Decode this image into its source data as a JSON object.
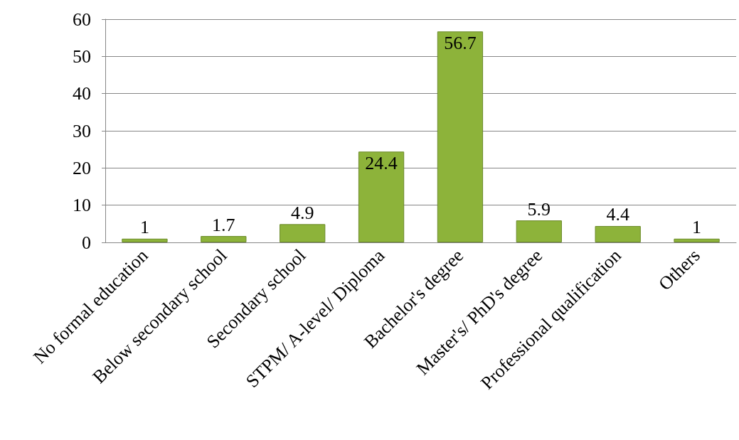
{
  "chart_data": {
    "type": "bar",
    "categories": [
      "No formal education",
      "Below secondary school",
      "Secondary school",
      "STPM/ A-level/ Diploma",
      "Bachelor's degree",
      "Master's/ PhD's degree",
      "Professional qualification",
      "Others"
    ],
    "values": [
      1,
      1.7,
      4.9,
      24.4,
      56.7,
      5.9,
      4.4,
      1
    ],
    "color": "#8db33a",
    "ylim": [
      0,
      60
    ],
    "yticks": [
      0,
      10,
      20,
      30,
      40,
      50,
      60
    ],
    "grid": "y",
    "data_labels": true
  }
}
